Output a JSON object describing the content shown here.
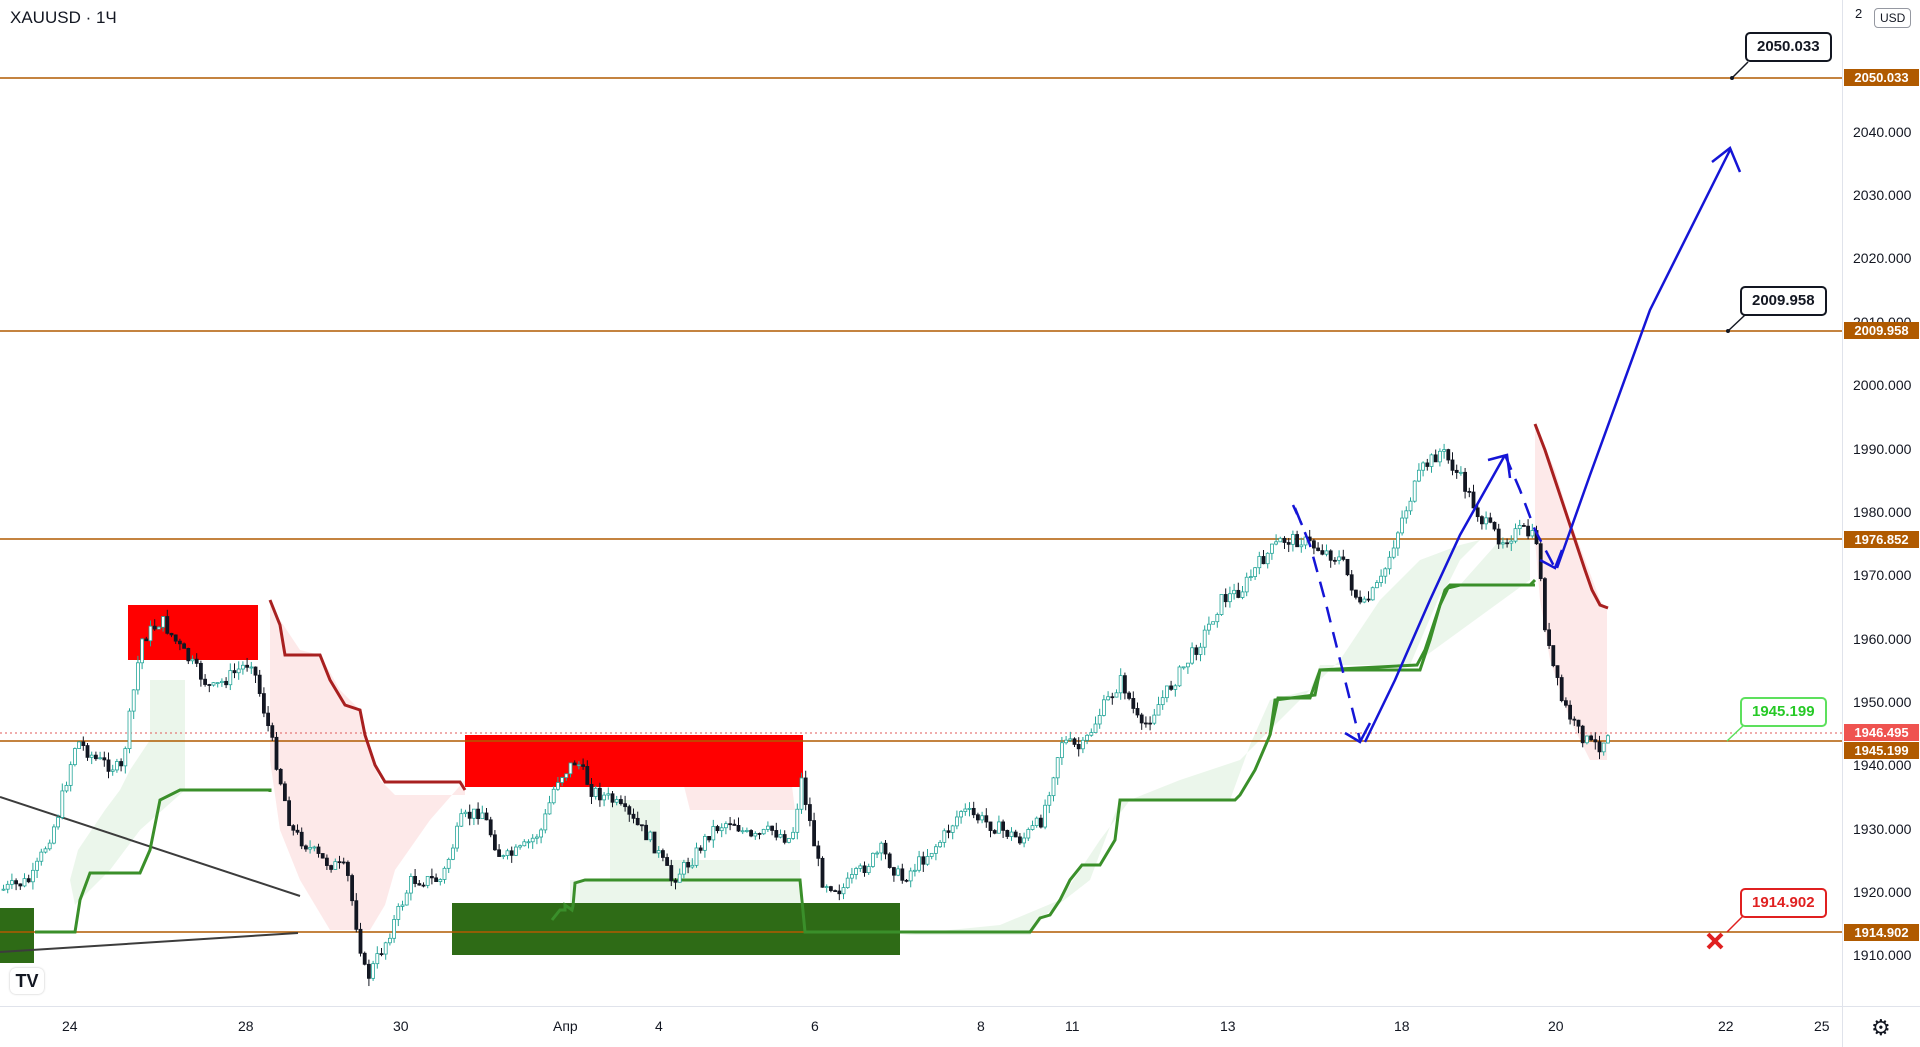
{
  "symbol": {
    "title": "XAUUSD · 1Ч"
  },
  "axis": {
    "currency": "USD",
    "top_label": "2"
  },
  "price_ticks": [
    "2040.000",
    "2030.000",
    "2020.000",
    "2010.000",
    "2000.000",
    "1990.000",
    "1980.000",
    "1970.000",
    "1960.000",
    "1950.000",
    "1940.000",
    "1930.000",
    "1920.000",
    "1910.000"
  ],
  "price_tags": {
    "tag_2050": "2050.033",
    "tag_2009": "2009.958",
    "tag_1976": "1976.852",
    "tag_current": "1946.495",
    "tag_1945": "1945.199",
    "tag_1914": "1914.902"
  },
  "callouts": {
    "c_2050": "2050.033",
    "c_2009": "2009.958",
    "c_1945": "1945.199",
    "c_1914": "1914.902"
  },
  "time_labels": [
    "24",
    "28",
    "30",
    "Апр",
    "4",
    "6",
    "8",
    "11",
    "13",
    "18",
    "20",
    "22",
    "25"
  ],
  "colors": {
    "level_line": "#b05a00",
    "bull_candle": "#26a69a",
    "bear_candle": "#131722",
    "supply_zone": "#ff0000",
    "demand_zone": "#2e6b16",
    "support_line": "#2e8b2e",
    "resistance_line": "#b22222",
    "projection": "#1515d6"
  },
  "icons": {
    "brand": "tradingview-logo",
    "settings": "gear-icon",
    "target_miss": "cross-icon"
  },
  "logo": {
    "text": "TV"
  },
  "settings_icon": "⚙"
}
